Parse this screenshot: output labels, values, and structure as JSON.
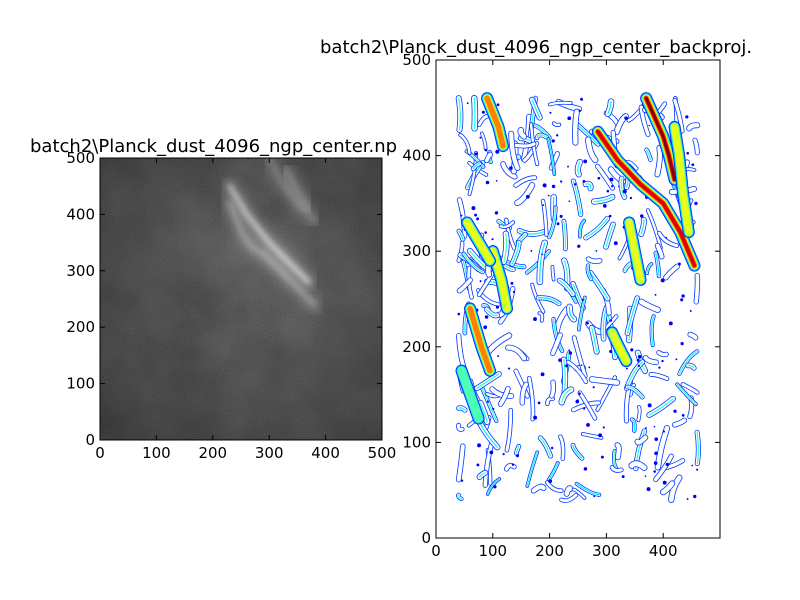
{
  "chart_data": [
    {
      "type": "heatmap",
      "title": "batch2\\Planck_dust_4096_ngp_center.np",
      "xlim": [
        0,
        500
      ],
      "ylim": [
        0,
        500
      ],
      "x_ticks": [
        0,
        100,
        200,
        300,
        400,
        500
      ],
      "y_ticks": [
        0,
        100,
        200,
        300,
        400,
        500
      ],
      "colormap": "grayscale",
      "features": [
        {
          "x": [
            230,
            260,
            300,
            330,
            370
          ],
          "y": [
            450,
            400,
            350,
            320,
            280
          ],
          "intensity": 0.9
        },
        {
          "x": [
            230,
            250,
            270,
            290,
            320,
            360,
            380
          ],
          "y": [
            420,
            370,
            340,
            330,
            300,
            260,
            240
          ],
          "intensity": 0.55
        },
        {
          "x": [
            300,
            320,
            350,
            380
          ],
          "y": [
            500,
            460,
            420,
            390
          ],
          "intensity": 0.4
        },
        {
          "x": [
            330,
            350,
            370
          ],
          "y": [
            480,
            440,
            410
          ],
          "intensity": 0.45
        }
      ]
    },
    {
      "type": "heatmap",
      "title": "batch2\\Planck_dust_4096_ngp_center_backproj.",
      "xlim": [
        0,
        500
      ],
      "ylim": [
        0,
        500
      ],
      "x_ticks": [
        0,
        100,
        200,
        300,
        400
      ],
      "y_ticks": [
        0,
        100,
        200,
        300,
        400,
        500
      ],
      "colormap": "jet",
      "data_extent": {
        "x": [
          40,
          460
        ],
        "y": [
          40,
          460
        ]
      },
      "prominent_filaments": [
        {
          "x": [
            285,
            320,
            360,
            400,
            430,
            455
          ],
          "y": [
            425,
            395,
            370,
            350,
            320,
            285
          ],
          "intensity": 0.85
        },
        {
          "x": [
            370,
            385,
            400,
            410,
            420
          ],
          "y": [
            460,
            440,
            420,
            400,
            375
          ],
          "intensity": 0.95
        },
        {
          "x": [
            420,
            428,
            435,
            445
          ],
          "y": [
            430,
            400,
            360,
            320
          ],
          "intensity": 0.6
        },
        {
          "x": [
            60,
            70,
            80,
            95
          ],
          "y": [
            240,
            220,
            200,
            175
          ],
          "intensity": 0.8
        },
        {
          "x": [
            90,
            100,
            110,
            118
          ],
          "y": [
            460,
            445,
            430,
            410
          ],
          "intensity": 0.7
        },
        {
          "x": [
            340,
            350,
            360
          ],
          "y": [
            330,
            300,
            270
          ],
          "intensity": 0.6
        },
        {
          "x": [
            100,
            115,
            125
          ],
          "y": [
            300,
            270,
            240
          ],
          "intensity": 0.55
        },
        {
          "x": [
            310,
            322,
            335
          ],
          "y": [
            215,
            200,
            185
          ],
          "intensity": 0.6
        },
        {
          "x": [
            45,
            60,
            75
          ],
          "y": [
            175,
            150,
            125
          ],
          "intensity": 0.5
        },
        {
          "x": [
            55,
            75,
            95
          ],
          "y": [
            330,
            310,
            290
          ],
          "intensity": 0.55
        }
      ]
    }
  ]
}
